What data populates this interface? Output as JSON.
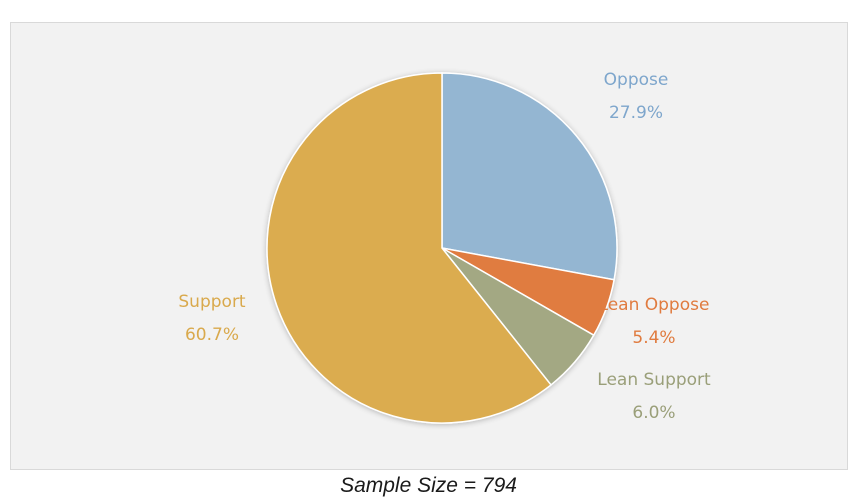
{
  "header": {
    "title": ""
  },
  "footnote": "Sample Size = 794",
  "chart_data": {
    "type": "pie",
    "title": "",
    "start_angle_deg": 0,
    "direction": "clockwise",
    "legend": "none",
    "slices": [
      {
        "name": "Oppose",
        "value": 27.9,
        "label": "27.9%",
        "color": "#94b6d2"
      },
      {
        "name": "Lean Oppose",
        "value": 5.4,
        "label": "5.4%",
        "color": "#e07b3f"
      },
      {
        "name": "Lean Support",
        "value": 6.0,
        "label": "6.0%",
        "color": "#a3a883"
      },
      {
        "name": "Support",
        "value": 60.7,
        "label": "60.7%",
        "color": "#dbac4f"
      }
    ]
  }
}
